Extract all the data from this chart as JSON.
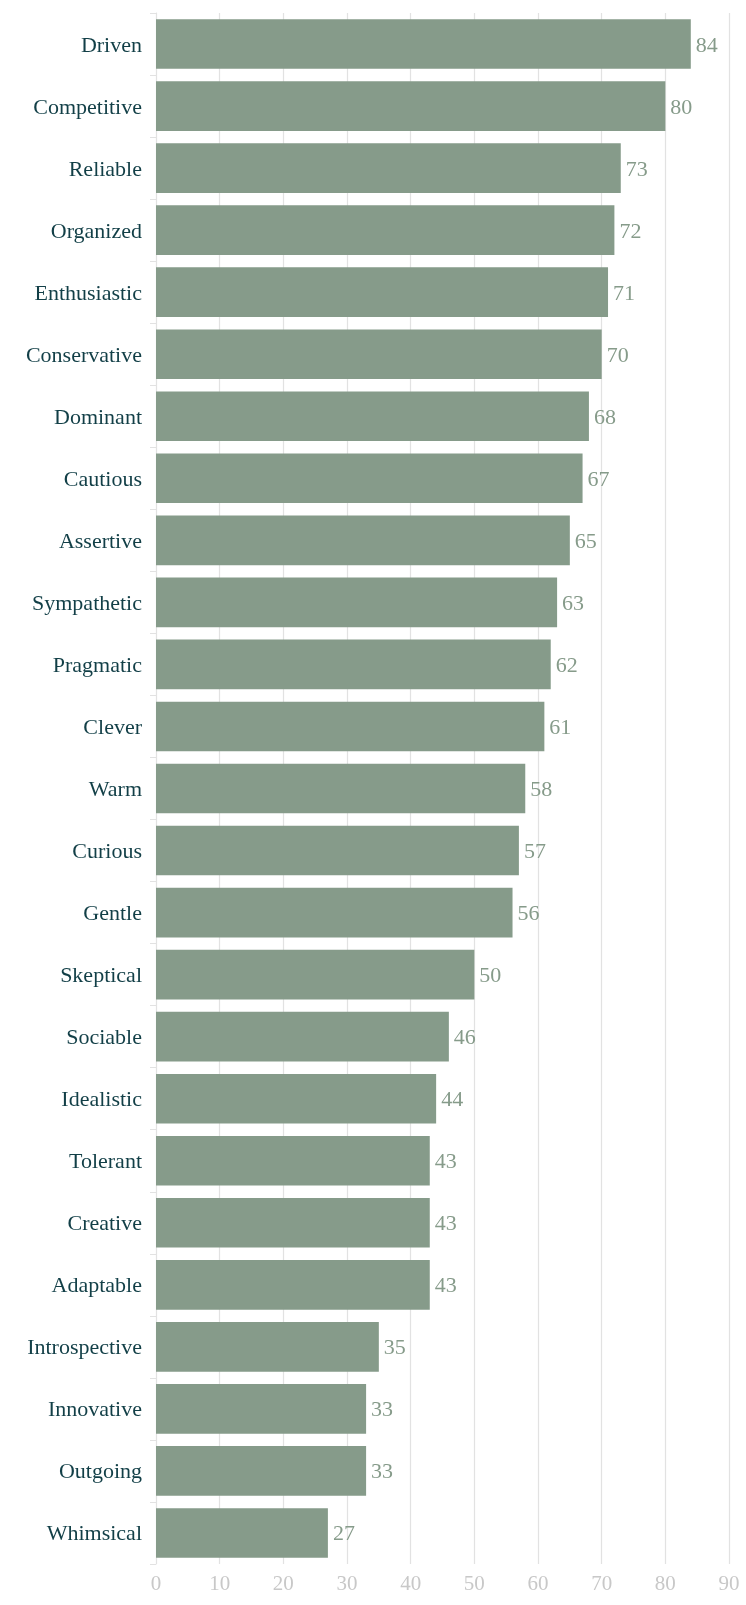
{
  "chart_data": {
    "type": "bar",
    "orientation": "horizontal",
    "categories": [
      "Driven",
      "Competitive",
      "Reliable",
      "Organized",
      "Enthusiastic",
      "Conservative",
      "Dominant",
      "Cautious",
      "Assertive",
      "Sympathetic",
      "Pragmatic",
      "Clever",
      "Warm",
      "Curious",
      "Gentle",
      "Skeptical",
      "Sociable",
      "Idealistic",
      "Tolerant",
      "Creative",
      "Adaptable",
      "Introspective",
      "Innovative",
      "Outgoing",
      "Whimsical"
    ],
    "values": [
      84,
      80,
      73,
      72,
      71,
      70,
      68,
      67,
      65,
      63,
      62,
      61,
      58,
      57,
      56,
      50,
      46,
      44,
      43,
      43,
      43,
      35,
      33,
      33,
      27
    ],
    "color": "#869b8a",
    "xlim": [
      0,
      90
    ],
    "xticks": [
      0,
      10,
      20,
      30,
      40,
      50,
      60,
      70,
      80,
      90
    ],
    "grid": "x",
    "data_labels": true
  }
}
